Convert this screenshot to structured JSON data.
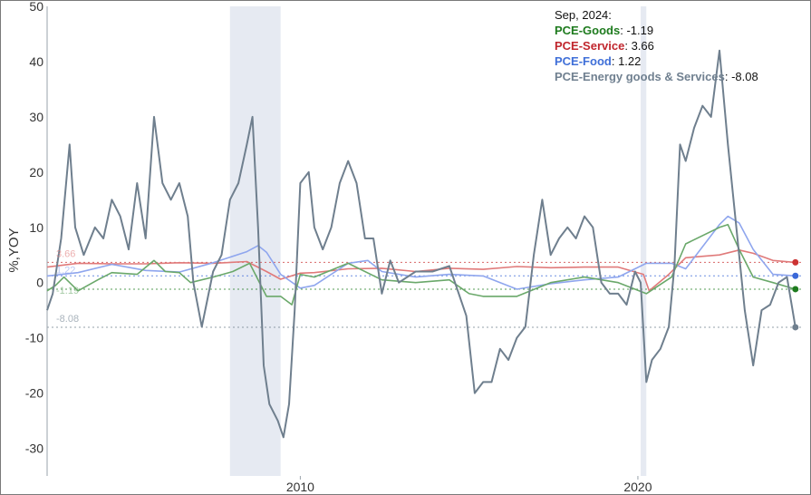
{
  "chart_data": {
    "type": "line",
    "ylabel": "%,YOY",
    "ylim": [
      -35,
      50
    ],
    "xlim": [
      "2002-07",
      "2024-11"
    ],
    "yticks": [
      50,
      40,
      30,
      20,
      10,
      0,
      -10,
      -20,
      -30
    ],
    "xticks": [
      "2010",
      "2020"
    ],
    "grid": false,
    "legend_position": "top-right",
    "shaded_periods": [
      [
        "2007-12",
        "2009-06"
      ],
      [
        "2020-02",
        "2020-04"
      ]
    ],
    "legend": {
      "header": "Sep, 2024:",
      "items": [
        {
          "name": "PCE-Goods",
          "sep": ": ",
          "value": "-1.19",
          "color": "#1e7b1e"
        },
        {
          "name": "PCE-Service",
          "sep": ": ",
          "value": "3.66",
          "color": "#c0262d"
        },
        {
          "name": "PCE-Food",
          "sep": ": ",
          "value": "1.22",
          "color": "#3f6fd8"
        },
        {
          "name": "PCE-Energy goods & Services",
          "sep": ": ",
          "value": "-8.08",
          "color": "#708090"
        }
      ]
    },
    "end_labels": [
      "3.66",
      "1.22",
      "-1.19",
      "-8.08"
    ],
    "series": [
      {
        "name": "PCE-Service",
        "color": "#e07a7a",
        "dot_color": "#cc3333",
        "last": 3.66,
        "points": [
          [
            "2002-07",
            2.8
          ],
          [
            "2003-06",
            3.5
          ],
          [
            "2004-06",
            3.4
          ],
          [
            "2005-06",
            3.4
          ],
          [
            "2006-06",
            3.6
          ],
          [
            "2007-06",
            3.5
          ],
          [
            "2008-06",
            3.8
          ],
          [
            "2009-01",
            2.0
          ],
          [
            "2009-06",
            0.6
          ],
          [
            "2010-01",
            1.7
          ],
          [
            "2010-06",
            1.8
          ],
          [
            "2011-06",
            2.5
          ],
          [
            "2012-06",
            2.6
          ],
          [
            "2013-06",
            2.0
          ],
          [
            "2014-06",
            2.6
          ],
          [
            "2015-06",
            2.4
          ],
          [
            "2016-06",
            2.9
          ],
          [
            "2017-06",
            2.7
          ],
          [
            "2018-06",
            2.8
          ],
          [
            "2019-06",
            2.8
          ],
          [
            "2020-03",
            1.5
          ],
          [
            "2020-05",
            -1.5
          ],
          [
            "2020-12",
            1.5
          ],
          [
            "2021-06",
            4.5
          ],
          [
            "2022-06",
            5.0
          ],
          [
            "2023-01",
            5.9
          ],
          [
            "2023-06",
            5.3
          ],
          [
            "2024-01",
            4.0
          ],
          [
            "2024-09",
            3.66
          ]
        ]
      },
      {
        "name": "PCE-Food",
        "color": "#8fa6ee",
        "dot_color": "#3a68d8",
        "last": 1.22,
        "points": [
          [
            "2002-07",
            1.2
          ],
          [
            "2003-06",
            1.8
          ],
          [
            "2004-06",
            3.3
          ],
          [
            "2005-06",
            2.2
          ],
          [
            "2006-06",
            1.9
          ],
          [
            "2007-06",
            3.6
          ],
          [
            "2008-06",
            5.6
          ],
          [
            "2008-10",
            6.7
          ],
          [
            "2009-01",
            5.5
          ],
          [
            "2009-06",
            1.5
          ],
          [
            "2010-01",
            -1.0
          ],
          [
            "2010-06",
            -0.5
          ],
          [
            "2011-06",
            3.5
          ],
          [
            "2012-01",
            4.0
          ],
          [
            "2012-06",
            2.0
          ],
          [
            "2013-06",
            1.0
          ],
          [
            "2014-06",
            1.5
          ],
          [
            "2015-06",
            1.2
          ],
          [
            "2016-06",
            -1.2
          ],
          [
            "2017-06",
            -0.2
          ],
          [
            "2018-06",
            0.5
          ],
          [
            "2019-06",
            1.0
          ],
          [
            "2020-04",
            3.5
          ],
          [
            "2021-01",
            3.5
          ],
          [
            "2021-06",
            2.5
          ],
          [
            "2022-06",
            10.5
          ],
          [
            "2022-09",
            12.0
          ],
          [
            "2023-01",
            10.8
          ],
          [
            "2023-06",
            6.0
          ],
          [
            "2024-01",
            1.5
          ],
          [
            "2024-09",
            1.22
          ]
        ]
      },
      {
        "name": "PCE-Goods",
        "color": "#6aa86a",
        "dot_color": "#1e7b1e",
        "last": -1.19,
        "points": [
          [
            "2002-07",
            -1.5
          ],
          [
            "2002-10",
            -0.5
          ],
          [
            "2003-01",
            1.0
          ],
          [
            "2003-06",
            -1.5
          ],
          [
            "2004-01",
            0.5
          ],
          [
            "2004-06",
            1.8
          ],
          [
            "2005-03",
            1.5
          ],
          [
            "2005-09",
            4.0
          ],
          [
            "2006-01",
            2.0
          ],
          [
            "2006-06",
            1.8
          ],
          [
            "2006-10",
            0.0
          ],
          [
            "2007-06",
            1.0
          ],
          [
            "2008-01",
            2.0
          ],
          [
            "2008-07",
            3.5
          ],
          [
            "2009-01",
            -2.5
          ],
          [
            "2009-06",
            -2.5
          ],
          [
            "2009-10",
            -4.0
          ],
          [
            "2010-01",
            1.5
          ],
          [
            "2010-06",
            1.0
          ],
          [
            "2011-06",
            3.5
          ],
          [
            "2012-06",
            0.5
          ],
          [
            "2013-06",
            0.0
          ],
          [
            "2014-06",
            0.5
          ],
          [
            "2015-01",
            -2.0
          ],
          [
            "2015-06",
            -2.5
          ],
          [
            "2016-06",
            -2.5
          ],
          [
            "2017-06",
            0.0
          ],
          [
            "2018-06",
            1.0
          ],
          [
            "2019-06",
            0.0
          ],
          [
            "2020-04",
            -2.0
          ],
          [
            "2021-01",
            1.0
          ],
          [
            "2021-06",
            7.0
          ],
          [
            "2022-06",
            10.0
          ],
          [
            "2022-09",
            10.5
          ],
          [
            "2023-01",
            6.0
          ],
          [
            "2023-06",
            1.0
          ],
          [
            "2024-01",
            0.0
          ],
          [
            "2024-09",
            -1.19
          ]
        ]
      },
      {
        "name": "PCE-Energy goods & Services",
        "color": "#6f7f8e",
        "dot_color": "#6f7f8e",
        "last": -8.08,
        "points": [
          [
            "2002-07",
            -5.0
          ],
          [
            "2002-09",
            -2.0
          ],
          [
            "2002-12",
            8.0
          ],
          [
            "2003-03",
            25.0
          ],
          [
            "2003-05",
            10.0
          ],
          [
            "2003-08",
            5.0
          ],
          [
            "2003-12",
            10.0
          ],
          [
            "2004-03",
            8.0
          ],
          [
            "2004-06",
            15.0
          ],
          [
            "2004-09",
            12.0
          ],
          [
            "2004-12",
            6.0
          ],
          [
            "2005-03",
            18.0
          ],
          [
            "2005-06",
            8.0
          ],
          [
            "2005-09",
            30.0
          ],
          [
            "2005-12",
            18.0
          ],
          [
            "2006-03",
            15.0
          ],
          [
            "2006-06",
            18.0
          ],
          [
            "2006-09",
            12.0
          ],
          [
            "2006-11",
            0.0
          ],
          [
            "2007-02",
            -8.0
          ],
          [
            "2007-06",
            2.0
          ],
          [
            "2007-09",
            5.0
          ],
          [
            "2007-12",
            15.0
          ],
          [
            "2008-03",
            18.0
          ],
          [
            "2008-06",
            25.0
          ],
          [
            "2008-08",
            30.0
          ],
          [
            "2008-10",
            10.0
          ],
          [
            "2008-12",
            -15.0
          ],
          [
            "2009-02",
            -22.0
          ],
          [
            "2009-05",
            -25.0
          ],
          [
            "2009-07",
            -28.0
          ],
          [
            "2009-09",
            -22.0
          ],
          [
            "2009-11",
            -5.0
          ],
          [
            "2010-01",
            18.0
          ],
          [
            "2010-04",
            20.0
          ],
          [
            "2010-06",
            10.0
          ],
          [
            "2010-09",
            6.0
          ],
          [
            "2010-12",
            10.0
          ],
          [
            "2011-03",
            18.0
          ],
          [
            "2011-06",
            22.0
          ],
          [
            "2011-09",
            18.0
          ],
          [
            "2011-12",
            8.0
          ],
          [
            "2012-03",
            8.0
          ],
          [
            "2012-06",
            -2.0
          ],
          [
            "2012-09",
            4.0
          ],
          [
            "2012-12",
            0.0
          ],
          [
            "2013-06",
            2.0
          ],
          [
            "2013-12",
            2.0
          ],
          [
            "2014-06",
            3.0
          ],
          [
            "2014-12",
            -6.0
          ],
          [
            "2015-03",
            -20.0
          ],
          [
            "2015-06",
            -18.0
          ],
          [
            "2015-09",
            -18.0
          ],
          [
            "2015-12",
            -12.0
          ],
          [
            "2016-03",
            -14.0
          ],
          [
            "2016-06",
            -10.0
          ],
          [
            "2016-09",
            -8.0
          ],
          [
            "2016-12",
            5.0
          ],
          [
            "2017-03",
            15.0
          ],
          [
            "2017-06",
            5.0
          ],
          [
            "2017-09",
            8.0
          ],
          [
            "2017-12",
            10.0
          ],
          [
            "2018-03",
            8.0
          ],
          [
            "2018-06",
            12.0
          ],
          [
            "2018-09",
            10.0
          ],
          [
            "2018-12",
            0.0
          ],
          [
            "2019-03",
            -2.0
          ],
          [
            "2019-06",
            -2.0
          ],
          [
            "2019-09",
            -4.0
          ],
          [
            "2019-12",
            2.0
          ],
          [
            "2020-02",
            0.0
          ],
          [
            "2020-04",
            -18.0
          ],
          [
            "2020-06",
            -14.0
          ],
          [
            "2020-09",
            -12.0
          ],
          [
            "2020-12",
            -8.0
          ],
          [
            "2021-02",
            3.0
          ],
          [
            "2021-04",
            25.0
          ],
          [
            "2021-06",
            22.0
          ],
          [
            "2021-09",
            28.0
          ],
          [
            "2021-12",
            32.0
          ],
          [
            "2022-03",
            30.0
          ],
          [
            "2022-06",
            42.0
          ],
          [
            "2022-09",
            25.0
          ],
          [
            "2022-12",
            10.0
          ],
          [
            "2023-03",
            -5.0
          ],
          [
            "2023-06",
            -15.0
          ],
          [
            "2023-09",
            -5.0
          ],
          [
            "2023-12",
            -4.0
          ],
          [
            "2024-03",
            0.0
          ],
          [
            "2024-06",
            1.0
          ],
          [
            "2024-09",
            -8.08
          ]
        ]
      }
    ]
  }
}
